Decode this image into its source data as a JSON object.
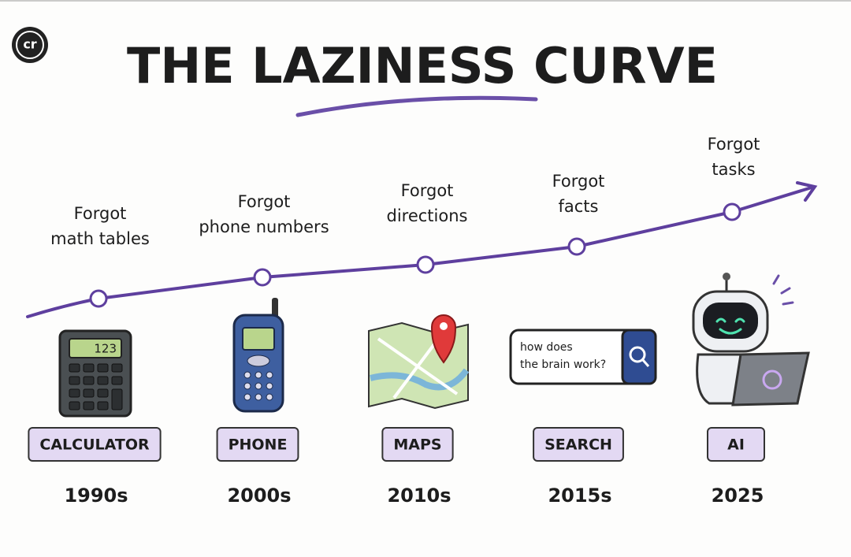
{
  "badge": "cr",
  "title": "THE LAZINESS CURVE",
  "stages": [
    {
      "caption": [
        "Forgot",
        "math tables"
      ],
      "tool": "CALCULATOR",
      "era": "1990s"
    },
    {
      "caption": [
        "Forgot",
        "phone numbers"
      ],
      "tool": "PHONE",
      "era": "2000s"
    },
    {
      "caption": [
        "Forgot",
        "directions"
      ],
      "tool": "MAPS",
      "era": "2010s"
    },
    {
      "caption": [
        "Forgot",
        "facts"
      ],
      "tool": "SEARCH",
      "era": "2015s"
    },
    {
      "caption": [
        "Forgot",
        "tasks"
      ],
      "tool": "AI",
      "era": "2025"
    }
  ],
  "icons": {
    "calculator_display": "123",
    "search_query": [
      "how does",
      "the brain work?"
    ]
  }
}
